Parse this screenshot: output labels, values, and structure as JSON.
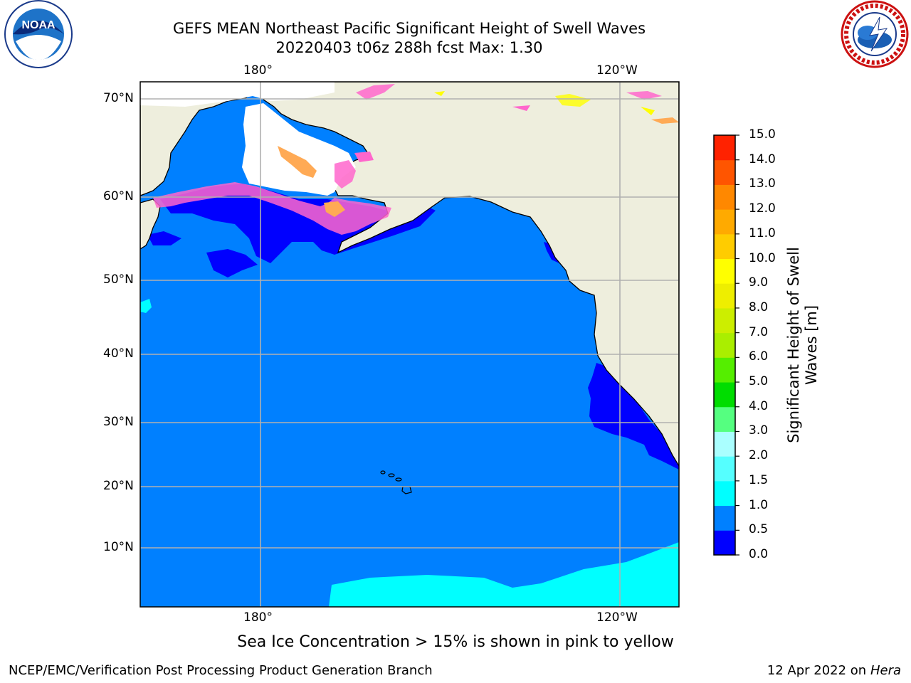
{
  "header": {
    "title_line1": "GEFS MEAN Northeast Pacific Significant Height of Swell Waves",
    "title_line2": "20220403 t06z 288h fcst   Max: 1.30"
  },
  "logos": {
    "left": {
      "name": "noaa-logo",
      "text": "NOAA",
      "ring_text": "NATIONAL OCEANIC AND ATMOSPHERIC ADMINISTRATION · U.S. DEPARTMENT OF COMMERCE"
    },
    "right": {
      "name": "nws-logo",
      "ring_text": "NATIONAL WEATHER SERVICE"
    }
  },
  "map": {
    "lon_labels": [
      "180°",
      "120°W"
    ],
    "lat_labels": [
      "70°N",
      "60°N",
      "50°N",
      "40°N",
      "30°N",
      "20°N",
      "10°N"
    ],
    "colors": {
      "land": "#eeeedd",
      "ocean_0_5_1_0": "#0080ff",
      "ocean_0_0_5": "#0000ff",
      "ocean_1_0_1_5": "#00ffff",
      "ice_pink": "#ff66cc",
      "ice_orange": "#ffaa55",
      "ice_yellow": "#ffff00",
      "grid": "#b0b0b0"
    }
  },
  "colorbar": {
    "label_line1": "Significant Height of Swell",
    "label_line2": "Waves [m]",
    "ticks": [
      "15.0",
      "14.0",
      "13.0",
      "12.0",
      "11.0",
      "10.0",
      "9.0",
      "8.0",
      "7.0",
      "6.0",
      "5.0",
      "4.0",
      "3.0",
      "2.0",
      "1.5",
      "1.0",
      "0.5",
      "0.0"
    ],
    "colors_bottom_to_top": [
      "#0000ff",
      "#0080ff",
      "#00ffff",
      "#55ffff",
      "#aaffff",
      "#55ff80",
      "#00dd00",
      "#55ee00",
      "#aaee00",
      "#ccee00",
      "#eeee00",
      "#ffff00",
      "#ffcc00",
      "#ffaa00",
      "#ff8800",
      "#ff5500",
      "#ff2200"
    ]
  },
  "notes": {
    "sea_ice": "Sea Ice Concentration > 15% is shown in pink to yellow"
  },
  "footer": {
    "left": "NCEP/EMC/Verification Post Processing Product Generation Branch",
    "right_prefix": "12 Apr 2022 on ",
    "right_host": "Hera"
  }
}
